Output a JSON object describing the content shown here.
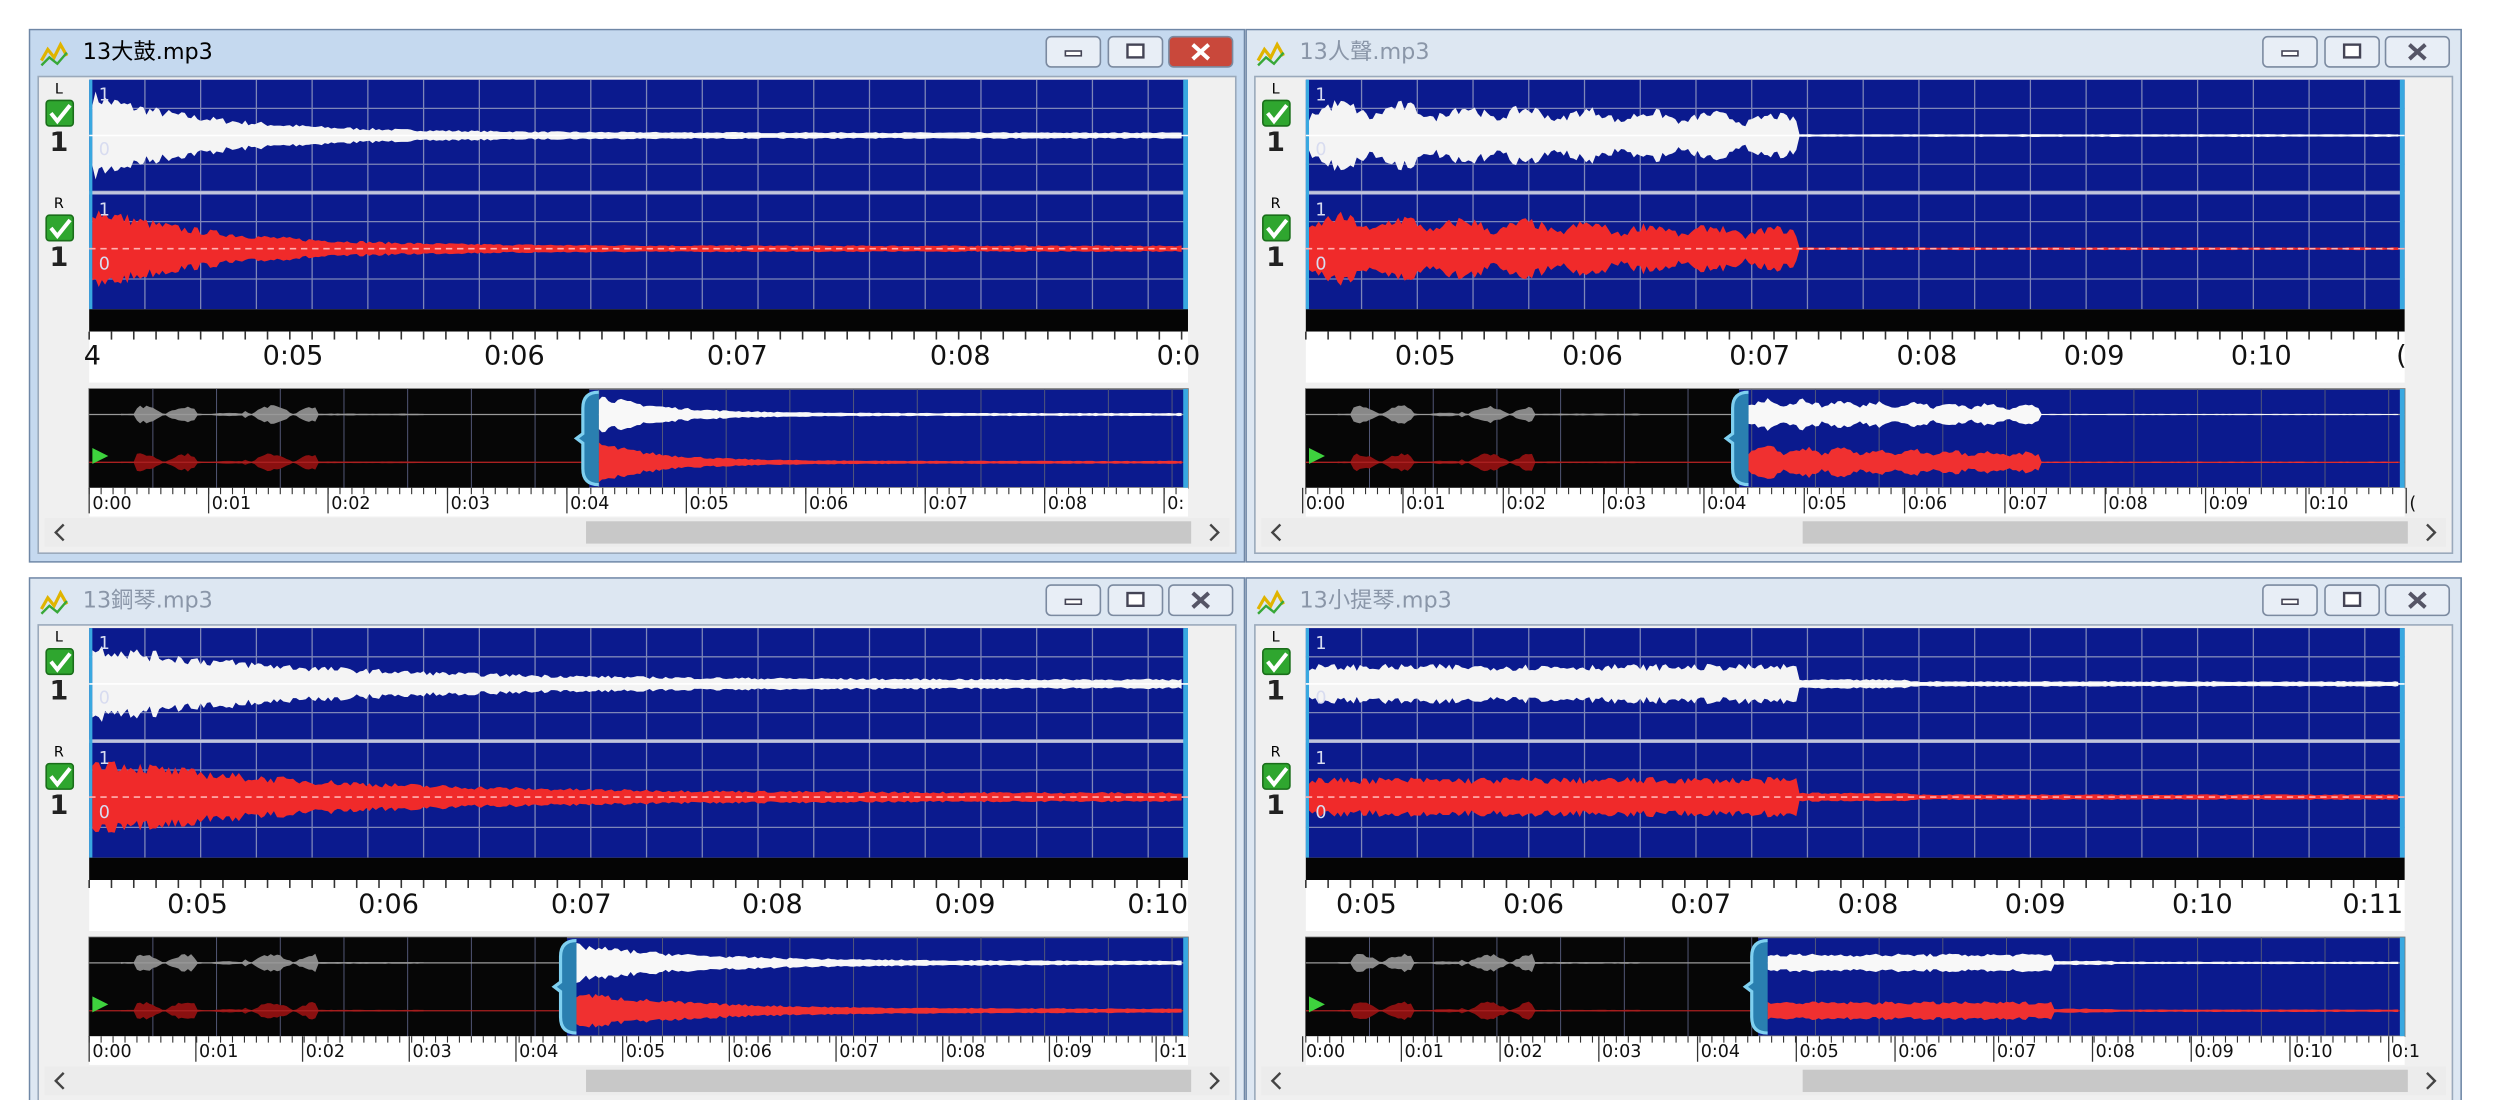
{
  "windows": [
    {
      "title": "13大鼓.mp3",
      "channels": [
        {
          "label": "L",
          "scale": "1",
          "top": "1",
          "zero": "0"
        },
        {
          "label": "R",
          "scale": "1",
          "top": "1",
          "zero": "0"
        }
      ],
      "timeline": [
        "4",
        "0:05",
        "0:06",
        "0:07",
        "0:08",
        "0:0"
      ],
      "overview": [
        "0:00",
        "0:01",
        "0:02",
        "0:03",
        "0:04",
        "0:05",
        "0:06",
        "0:07",
        "0:08",
        "0:"
      ]
    },
    {
      "title": "13人聲.mp3",
      "channels": [
        {
          "label": "L",
          "scale": "1",
          "top": "1",
          "zero": "0"
        },
        {
          "label": "R",
          "scale": "1",
          "top": "1",
          "zero": "0"
        }
      ],
      "timeline": [
        "0:05",
        "0:06",
        "0:07",
        "0:08",
        "0:09",
        "0:10",
        "("
      ],
      "overview": [
        "0:00",
        "0:01",
        "0:02",
        "0:03",
        "0:04",
        "0:05",
        "0:06",
        "0:07",
        "0:08",
        "0:09",
        "0:10",
        "("
      ]
    },
    {
      "title": "13鋼琴.mp3",
      "channels": [
        {
          "label": "L",
          "scale": "1",
          "top": "1",
          "zero": "0"
        },
        {
          "label": "R",
          "scale": "1",
          "top": "1",
          "zero": "0"
        }
      ],
      "timeline": [
        "0:05",
        "0:06",
        "0:07",
        "0:08",
        "0:09",
        "0:10"
      ],
      "overview": [
        "0:00",
        "0:01",
        "0:02",
        "0:03",
        "0:04",
        "0:05",
        "0:06",
        "0:07",
        "0:08",
        "0:09",
        "0:1"
      ]
    },
    {
      "title": "13小提琴.mp3",
      "channels": [
        {
          "label": "L",
          "scale": "1",
          "top": "1",
          "zero": "0"
        },
        {
          "label": "R",
          "scale": "1",
          "top": "1",
          "zero": "0"
        }
      ],
      "timeline": [
        "0:05",
        "0:06",
        "0:07",
        "0:08",
        "0:09",
        "0:10",
        "0:11"
      ],
      "overview": [
        "0:00",
        "0:01",
        "0:02",
        "0:03",
        "0:04",
        "0:05",
        "0:06",
        "0:07",
        "0:08",
        "0:09",
        "0:10",
        "0:1"
      ]
    }
  ]
}
